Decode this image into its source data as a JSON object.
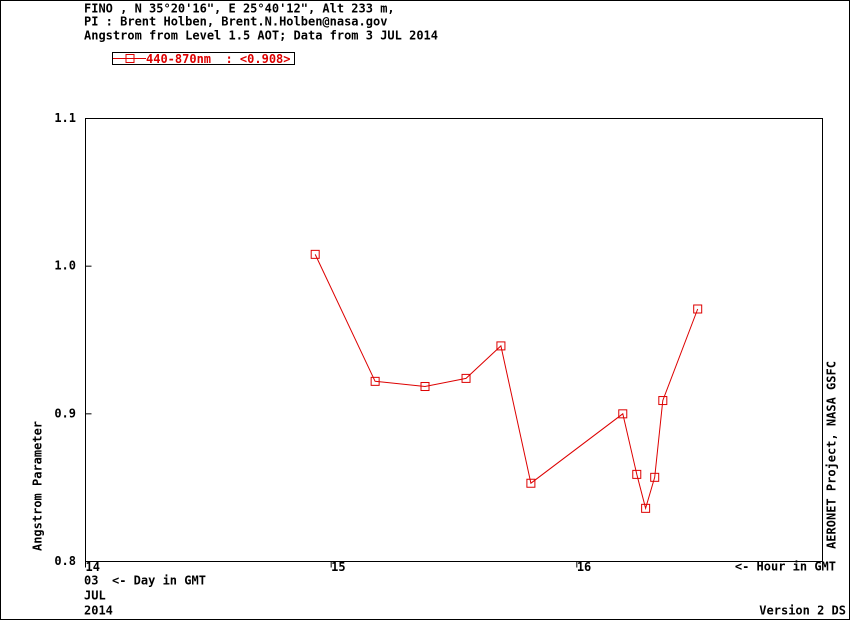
{
  "chart_data": {
    "type": "line",
    "title_lines": [
      "FINO , N 35°20'16\", E 25°40'12\", Alt 233 m,",
      "PI : Brent Holben, Brent.N.Holben@nasa.gov",
      "Angstrom from Level 1.5 AOT; Data from 3 JUL 2014"
    ],
    "ylabel": "Angstrom Parameter",
    "xlabel": "<- Hour in GMT",
    "day_label": "<- Day in GMT",
    "date_labels": [
      "03",
      "JUL",
      "2014"
    ],
    "side_note": "AERONET Project, NASA GSFC",
    "footer": "Version 2 DS",
    "x": [
      14.935,
      15.179,
      15.382,
      15.549,
      15.691,
      15.813,
      16.187,
      16.244,
      16.28,
      16.317,
      16.35,
      16.492
    ],
    "series": [
      {
        "name": "440-870nm  : <0.908>",
        "color": "#dd0000",
        "values": [
          1.008,
          0.922,
          0.9185,
          0.924,
          0.946,
          0.853,
          0.9,
          0.859,
          0.836,
          0.857,
          0.909,
          0.971
        ]
      }
    ],
    "xlim": [
      14,
      17
    ],
    "xticks": [
      14,
      15,
      16
    ],
    "ylim": [
      0.8,
      1.1
    ],
    "yticks": [
      0.8,
      0.9,
      {
        "value": 1,
        "label": "1.0"
      },
      1.1
    ],
    "legend": "top-left",
    "grid": false
  }
}
